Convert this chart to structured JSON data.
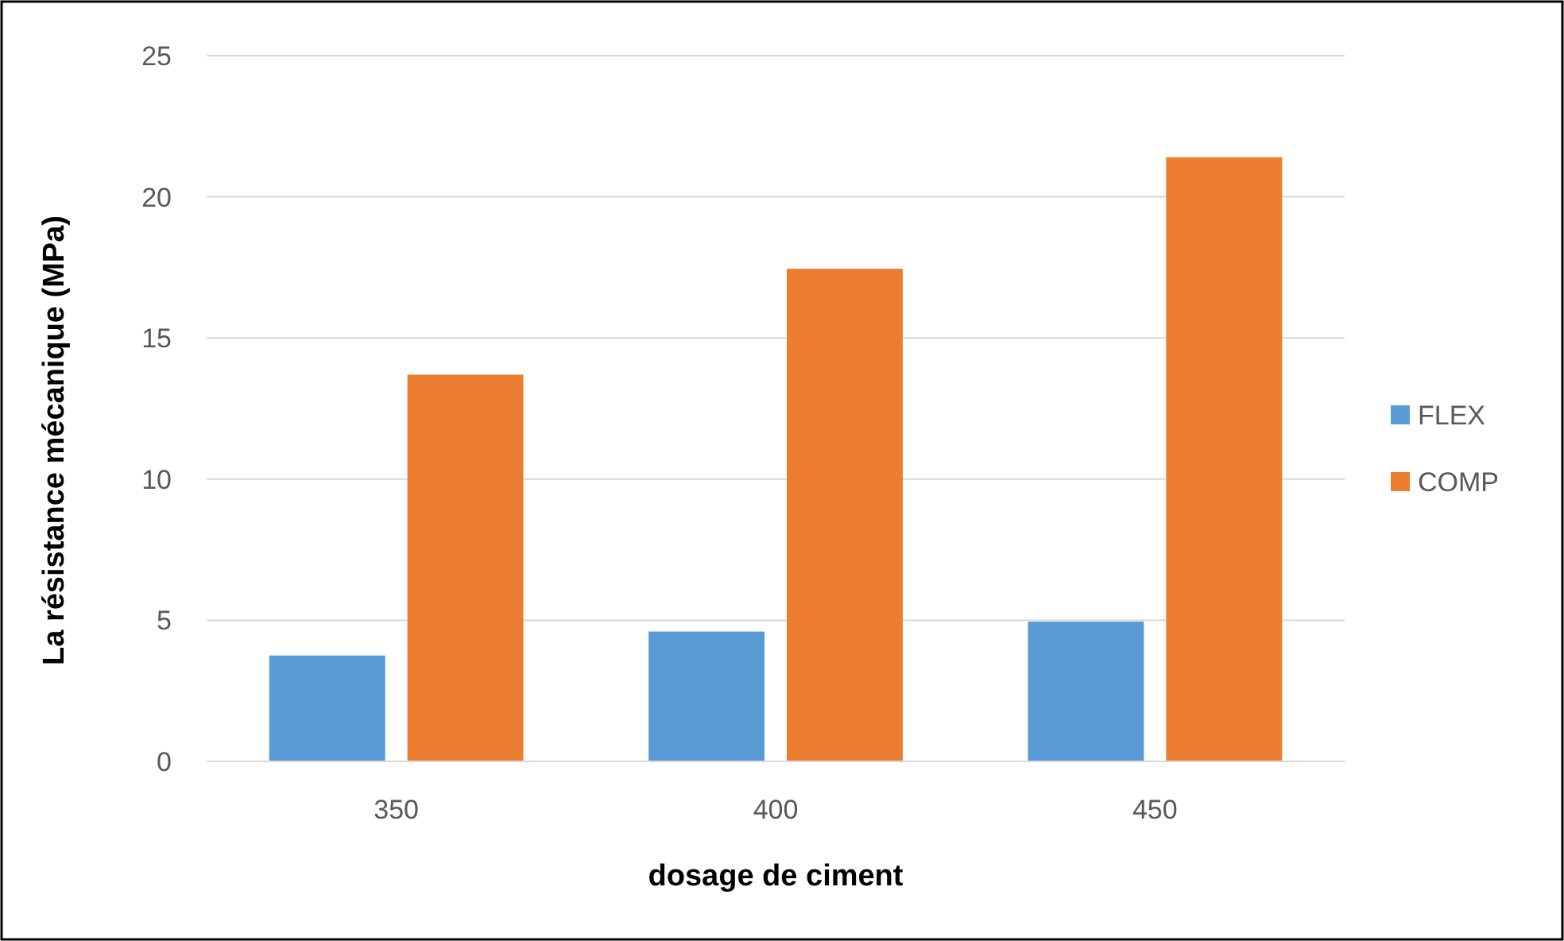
{
  "chart_data": {
    "type": "bar",
    "xlabel": "dosage de ciment",
    "ylabel": "La résistance mécanique (MPa)",
    "categories": [
      "350",
      "400",
      "450"
    ],
    "series": [
      {
        "name": "FLEX",
        "color": "#5b9bd5",
        "values": [
          3.75,
          4.6,
          4.95
        ]
      },
      {
        "name": "COMP",
        "color": "#ed7d31",
        "values": [
          13.7,
          17.45,
          21.4
        ]
      }
    ],
    "ylim": [
      0,
      25
    ],
    "yticks": [
      0,
      5,
      10,
      15,
      20,
      25
    ],
    "grid": "y",
    "legend": "right"
  }
}
